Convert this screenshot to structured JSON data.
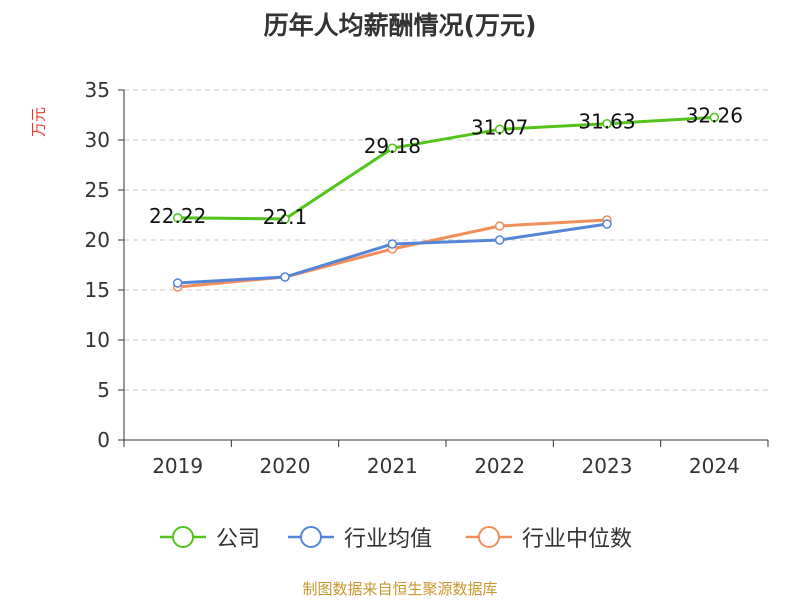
{
  "chart_data": {
    "type": "line",
    "title": "历年人均薪酬情况(万元)",
    "ylabel": "万元",
    "xlabel": "",
    "categories": [
      "2019",
      "2020",
      "2021",
      "2022",
      "2023",
      "2024"
    ],
    "ylim": [
      0,
      35
    ],
    "yticks": [
      0,
      5,
      10,
      15,
      20,
      25,
      30,
      35
    ],
    "grid": true,
    "legend_position": "bottom",
    "series": [
      {
        "name": "公司",
        "color": "#52c41a",
        "values": [
          22.22,
          22.1,
          29.18,
          31.07,
          31.63,
          32.26
        ],
        "labels": [
          "22.22",
          "22.1",
          "29.18",
          "31.07",
          "31.63",
          "32.26"
        ]
      },
      {
        "name": "行业均值",
        "color": "#5585d8",
        "values": [
          15.7,
          16.3,
          19.6,
          20.0,
          21.6,
          null
        ]
      },
      {
        "name": "行业中位数",
        "color": "#f28e5a",
        "values": [
          15.3,
          16.3,
          19.1,
          21.4,
          22.0,
          null
        ]
      }
    ]
  },
  "source_note": "制图数据来自恒生聚源数据库"
}
